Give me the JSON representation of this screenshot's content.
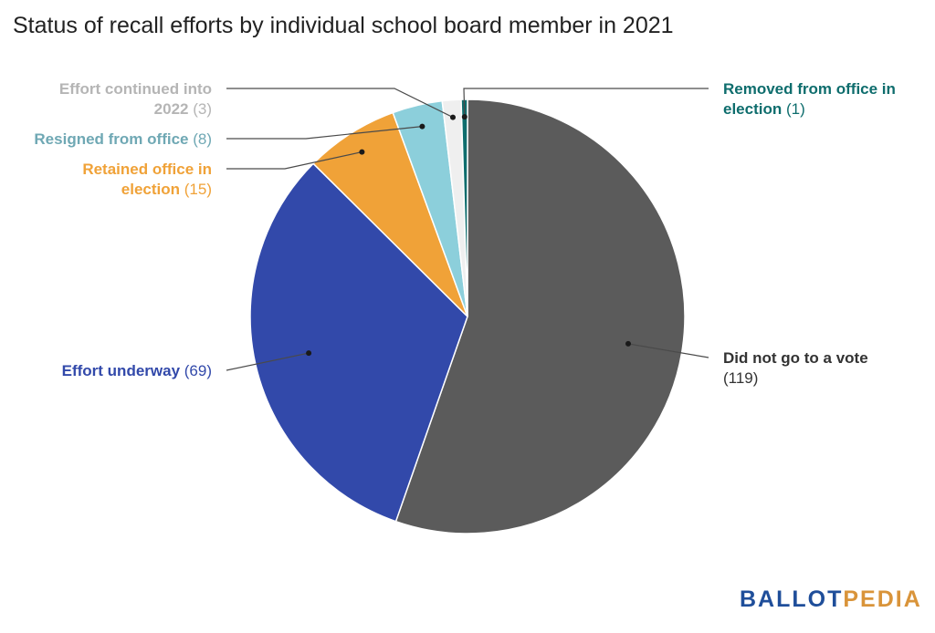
{
  "chart_data": {
    "type": "pie",
    "title": "Status of recall efforts by individual school board member in 2021",
    "slices": [
      {
        "label": "Did not go to a vote",
        "value": 119,
        "color": "#5b5b5b",
        "text_color": "#333333"
      },
      {
        "label": "Effort underway",
        "value": 69,
        "color": "#3249aa",
        "text_color": "#3249aa"
      },
      {
        "label": "Retained office in election",
        "value": 15,
        "color": "#f0a238",
        "text_color": "#f0a238"
      },
      {
        "label": "Resigned from office",
        "value": 8,
        "color": "#8ccfdb",
        "text_color": "#6fa8b4"
      },
      {
        "label": "Effort continued into 2022",
        "value": 3,
        "color": "#efefef",
        "text_color": "#b5b5b5"
      },
      {
        "label": "Removed from office in election",
        "value": 1,
        "color": "#0e6d6d",
        "text_color": "#0e6d6d"
      }
    ]
  },
  "brand": {
    "part1": "BALLOT",
    "part2": "PEDIA"
  }
}
